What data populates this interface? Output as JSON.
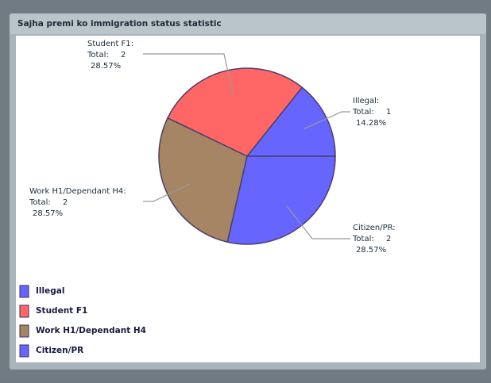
{
  "chart_data": {
    "type": "pie",
    "title": "Sajha premi ko immigration status statistic",
    "categories": [
      "Illegal",
      "Student F1",
      "Work H1/Dependant H4",
      "Citizen/PR"
    ],
    "slice_labels": [
      "Illegal:",
      "Student F1:",
      "Work H1/Dependant H4:",
      "Citizen/PR:"
    ],
    "total_prefix": "Total:",
    "totals": [
      1,
      2,
      2,
      2
    ],
    "values": [
      14.28,
      28.57,
      28.57,
      28.57
    ],
    "value_labels": [
      "14.28%",
      "28.57%",
      "28.57%",
      "28.57%"
    ],
    "colors": [
      "#6666ff",
      "#ff6666",
      "#a58564",
      "#6666ff"
    ]
  }
}
